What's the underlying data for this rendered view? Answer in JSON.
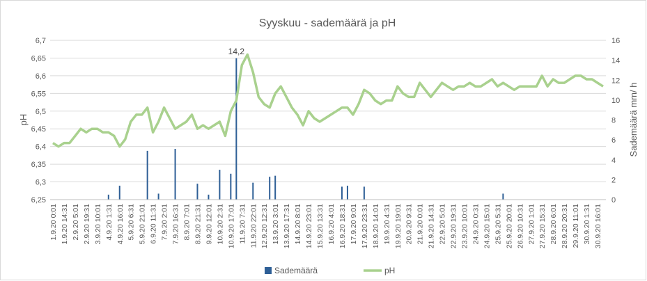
{
  "chart_data": {
    "type": "bar-line",
    "title": "Syyskuu - sademäärä ja pH",
    "ylabel": "pH",
    "y2label": "Sademäärä mm/ h",
    "categories": [
      "1.9.20 0:01",
      null,
      "1.9.20 14:31",
      null,
      "2.9.20 5:01",
      null,
      "2.9.20 19:31",
      null,
      "3.9.20 10:01",
      null,
      "4.9.20 1:31",
      null,
      "4.9.20 16:01",
      null,
      "5.9.20 6:31",
      null,
      "5.9.20 21:01",
      null,
      "6.9.20 11:31",
      null,
      "7.9.20 2:01",
      null,
      "7.9.20 16:31",
      null,
      "8.9.20 7:01",
      null,
      "8.9.20 21:31",
      null,
      "9.9.20 12:01",
      null,
      "10.9.20 2:31",
      null,
      "10.9.20 17:01",
      null,
      "11.9.20 7:31",
      null,
      "11.9.20 22:01",
      null,
      "12.9.20 12:31",
      null,
      "13.9.20 3:01",
      null,
      "13.9.20 17:31",
      null,
      "14.9.20 8:01",
      null,
      "14.9.20 23:01",
      null,
      "15.9.20 13:31",
      null,
      "16.9.20 4:01",
      null,
      "16.9.20 18:31",
      null,
      "17.9.20 9:01",
      null,
      "17.9.20 23:31",
      null,
      "18.9.20 14:01",
      null,
      "19.9.20 4:31",
      null,
      "19.9.20 19:01",
      null,
      "20.9.20 9:31",
      null,
      "21.9.20 0:01",
      null,
      "21.9.20 14:31",
      null,
      "22.9.20 5:01",
      null,
      "22.9.20 19:31",
      null,
      "23.9.20 10:01",
      null,
      "24.9.20 0:31",
      null,
      "24.9.20 15:01",
      null,
      "25.9.20 5:31",
      null,
      "25.9.20 20:01",
      null,
      "26.9.20 10:31",
      null,
      "27.9.20 1:01",
      null,
      "27.9.20 15:31",
      null,
      "28.9.20 6:01",
      null,
      "28.9.20 20:31",
      null,
      "29.9.20 11:01",
      null,
      "30.9.20 1:31",
      null,
      "30.9.20 16:01",
      null
    ],
    "series": [
      {
        "name": "Sademäärä",
        "type": "bar",
        "axis": "y2",
        "color": "#2e5f96",
        "values": [
          0,
          0,
          0,
          0,
          0,
          0,
          0,
          0,
          0,
          0,
          0.5,
          0,
          1.4,
          0,
          0,
          0,
          0,
          4.9,
          0,
          0.6,
          0,
          0,
          5.1,
          0,
          0,
          0,
          1.6,
          0,
          0.5,
          0,
          3.0,
          0,
          2.6,
          14.2,
          0,
          0,
          1.7,
          0,
          0,
          2.3,
          2.4,
          0,
          0,
          0,
          0,
          0,
          0,
          0,
          0,
          0,
          0,
          0,
          1.3,
          1.4,
          0,
          0,
          1.3,
          0,
          0,
          0,
          0,
          0,
          0,
          0,
          0,
          0,
          0,
          0,
          0,
          0,
          0,
          0,
          0,
          0,
          0,
          0,
          0,
          0,
          0,
          0,
          0,
          0.6,
          0,
          0,
          0,
          0,
          0,
          0,
          0,
          0,
          0,
          0,
          0,
          0,
          0,
          0,
          0,
          0,
          0,
          0
        ],
        "value_labels": [
          null,
          null,
          null,
          null,
          null,
          null,
          null,
          null,
          null,
          null,
          null,
          null,
          null,
          null,
          null,
          null,
          null,
          null,
          null,
          null,
          null,
          null,
          null,
          null,
          null,
          null,
          null,
          null,
          null,
          null,
          null,
          null,
          null,
          "14,2",
          null,
          null,
          null,
          null,
          null,
          null,
          null,
          null,
          null,
          null,
          null,
          null,
          null,
          null,
          null,
          null,
          null,
          null,
          null,
          null,
          null,
          null,
          null,
          null,
          null,
          null,
          null,
          null,
          null,
          null,
          null,
          null,
          null,
          null,
          null,
          null,
          null,
          null,
          null,
          null,
          null,
          null,
          null,
          null,
          null,
          null,
          null,
          null,
          null,
          null,
          null,
          null,
          null,
          null,
          null,
          null,
          null,
          null,
          null,
          null,
          null,
          null,
          null,
          null,
          null,
          null
        ]
      },
      {
        "name": "pH",
        "type": "line",
        "axis": "y",
        "color": "#a9d18e",
        "values": [
          6.41,
          6.4,
          6.41,
          6.41,
          6.43,
          6.45,
          6.44,
          6.45,
          6.45,
          6.44,
          6.44,
          6.43,
          6.4,
          6.42,
          6.47,
          6.49,
          6.49,
          6.51,
          6.44,
          6.47,
          6.51,
          6.48,
          6.45,
          6.46,
          6.47,
          6.49,
          6.45,
          6.46,
          6.45,
          6.46,
          6.47,
          6.43,
          6.5,
          6.53,
          6.63,
          6.66,
          6.61,
          6.54,
          6.52,
          6.51,
          6.55,
          6.57,
          6.54,
          6.51,
          6.49,
          6.46,
          6.5,
          6.48,
          6.47,
          6.48,
          6.49,
          6.5,
          6.51,
          6.51,
          6.49,
          6.52,
          6.56,
          6.55,
          6.53,
          6.52,
          6.53,
          6.53,
          6.57,
          6.55,
          6.54,
          6.54,
          6.58,
          6.56,
          6.54,
          6.56,
          6.58,
          6.57,
          6.56,
          6.57,
          6.57,
          6.58,
          6.57,
          6.57,
          6.58,
          6.59,
          6.57,
          6.58,
          6.57,
          6.56,
          6.57,
          6.57,
          6.57,
          6.57,
          6.6,
          6.57,
          6.59,
          6.58,
          6.58,
          6.59,
          6.6,
          6.6,
          6.59,
          6.59,
          6.58,
          6.57
        ]
      }
    ],
    "ylim": [
      6.25,
      6.7
    ],
    "yticks": [
      {
        "value": 6.25,
        "label": "6,25"
      },
      {
        "value": 6.3,
        "label": "6,3"
      },
      {
        "value": 6.35,
        "label": "6,35"
      },
      {
        "value": 6.4,
        "label": "6,4"
      },
      {
        "value": 6.45,
        "label": "6,45"
      },
      {
        "value": 6.5,
        "label": "6,5"
      },
      {
        "value": 6.55,
        "label": "6,55"
      },
      {
        "value": 6.6,
        "label": "6,6"
      },
      {
        "value": 6.65,
        "label": "6,65"
      },
      {
        "value": 6.7,
        "label": "6,7"
      }
    ],
    "y2lim": [
      0,
      16
    ],
    "y2ticks": [
      0,
      2,
      4,
      6,
      8,
      10,
      12,
      14,
      16
    ],
    "grid": true,
    "legend": "bottom"
  }
}
